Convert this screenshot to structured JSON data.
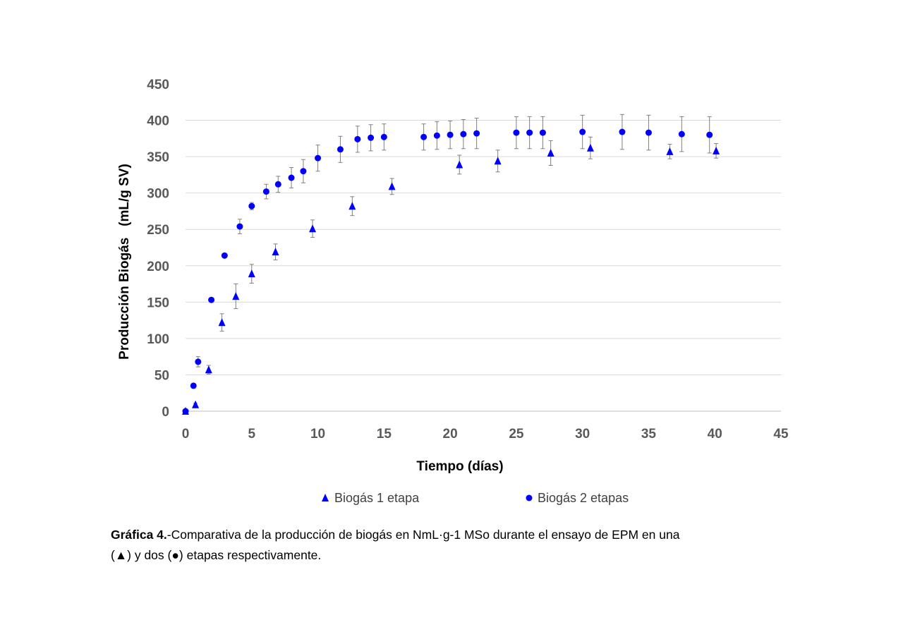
{
  "chart_data": {
    "type": "scatter",
    "xlabel": "Tiempo (días)",
    "ylabel": "Producción Biogás   (mL/g SV)",
    "xlim": [
      0,
      45
    ],
    "ylim": [
      0,
      450
    ],
    "xticks": [
      0,
      5,
      10,
      15,
      20,
      25,
      30,
      35,
      40,
      45
    ],
    "yticks": [
      0,
      50,
      100,
      150,
      200,
      250,
      300,
      350,
      400,
      450
    ],
    "grid": "horizontal",
    "legend_position": "bottom",
    "series": [
      {
        "name": "Biogás 1 etapa",
        "marker": "triangle",
        "color": "#0000ff",
        "x": [
          0,
          0.75,
          1.75,
          2.75,
          3.8,
          5.0,
          6.8,
          9.6,
          12.6,
          15.6,
          20.7,
          23.6,
          27.6,
          30.6,
          36.6,
          40.1
        ],
        "y": [
          0,
          9,
          57,
          122,
          158,
          189,
          219,
          251,
          282,
          309,
          339,
          344,
          355,
          362,
          357,
          358
        ],
        "err": [
          0,
          2,
          6,
          12,
          17,
          13,
          11,
          12,
          13,
          11,
          13,
          15,
          17,
          15,
          10,
          10
        ]
      },
      {
        "name": "Biogás 2 etapas",
        "marker": "circle",
        "color": "#0000ff",
        "x": [
          0,
          0.6,
          0.95,
          1.95,
          2.95,
          4.1,
          5.0,
          6.1,
          7.0,
          8.0,
          8.9,
          10.0,
          11.7,
          13.0,
          14.0,
          15.0,
          18.0,
          19.0,
          20.0,
          21.0,
          22.0,
          25.0,
          26.0,
          27.0,
          30.0,
          33.0,
          35.0,
          37.5,
          39.6
        ],
        "y": [
          0,
          35,
          68,
          153,
          214,
          254,
          282,
          302,
          312,
          321,
          330,
          348,
          360,
          374,
          376,
          377,
          377,
          379,
          380,
          381,
          382,
          383,
          383,
          383,
          384,
          384,
          383,
          381,
          380
        ],
        "err": [
          0,
          2,
          7,
          2,
          2,
          10,
          5,
          10,
          11,
          14,
          16,
          18,
          18,
          18,
          18,
          18,
          18,
          19,
          19,
          20,
          21,
          22,
          22,
          22,
          23,
          24,
          24,
          24,
          25
        ]
      }
    ]
  },
  "caption": {
    "label": "Gráfica 4.",
    "line1": "-Comparativa de la producción de biogás en NmL·g-1 MSo durante el ensayo de EPM en una",
    "line2": "(▲) y dos (●) etapas respectivamente."
  }
}
